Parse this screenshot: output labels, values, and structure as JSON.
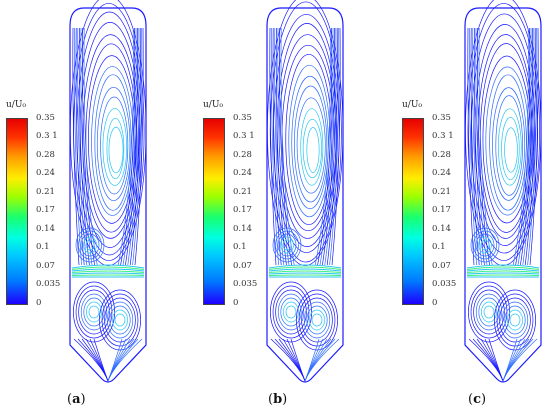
{
  "colorbar": {
    "title": "u/U₀",
    "ticks": [
      "0.35",
      "0.3 1",
      "0.28",
      "0.24",
      "0.21",
      "0.17",
      "0.14",
      "0.1",
      "0.07",
      "0.035",
      "0"
    ]
  },
  "panels": [
    {
      "label": "a"
    },
    {
      "label": "b"
    },
    {
      "label": "c"
    }
  ],
  "colors": {
    "deep_blue": "#1a1aff",
    "mid_blue": "#2e6dff",
    "cyan": "#27c6f2",
    "green": "#3ff080"
  }
}
